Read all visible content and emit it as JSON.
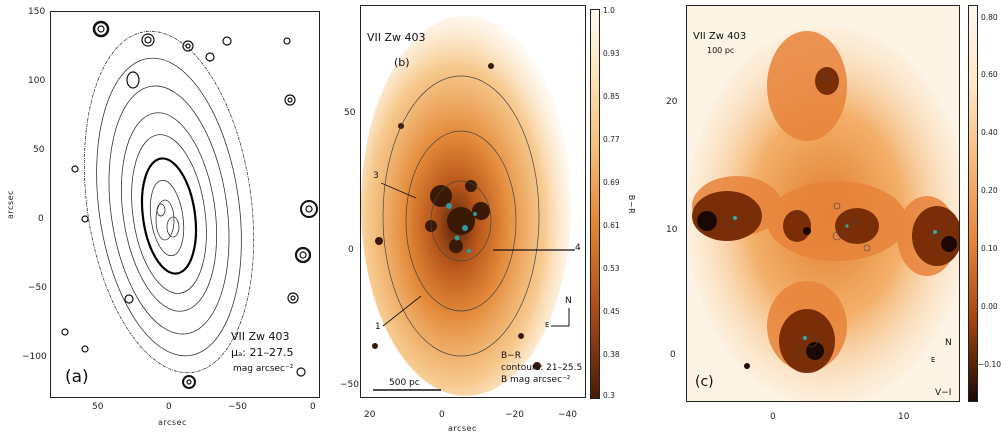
{
  "panel_a": {
    "letter": "(a)",
    "name": "VII Zw 403",
    "mu": "μₐ: 21–27.5",
    "units": "mag arcsec⁻²",
    "xlabel": "arcsec",
    "ylabel": "arcsec",
    "xticks": [
      "50",
      "0",
      "−50",
      "0"
    ],
    "yticks": [
      "150",
      "100",
      "50",
      "0",
      "−50",
      "−100"
    ]
  },
  "panel_b": {
    "name": "VII Zw 403",
    "letter": "(b)",
    "xlabel": "arcsec",
    "xticks": [
      "20",
      "0",
      "−20",
      "−40"
    ],
    "yticks": [
      "50",
      "0",
      "−50"
    ],
    "scalebar": "500 pc",
    "band": "B−R",
    "contours": "contours: 21–25.5",
    "units": "B mag arcsec⁻²",
    "num_3": "3",
    "num_4": "4",
    "num_1": "1",
    "compass_n": "N",
    "compass_e": "E",
    "cbar_label": "B−R",
    "cbar_ticks": [
      "1.0",
      "0.93",
      "0.85",
      "0.77",
      "0.69",
      "0.61",
      "0.53",
      "0.45",
      "0.38",
      "0.3"
    ]
  },
  "panel_c": {
    "name": "VII Zw 403",
    "sub": "100 pc",
    "letter": "(c)",
    "yticks": [
      "20",
      "10",
      "0"
    ],
    "xticks": [
      "0",
      "10"
    ],
    "compass_n": "N",
    "compass_e": "E",
    "band": "V−I",
    "cbar_ticks": [
      "0.80",
      "0.60",
      "0.40",
      "0.20",
      "0.10",
      "0.00",
      "−0.10"
    ]
  }
}
